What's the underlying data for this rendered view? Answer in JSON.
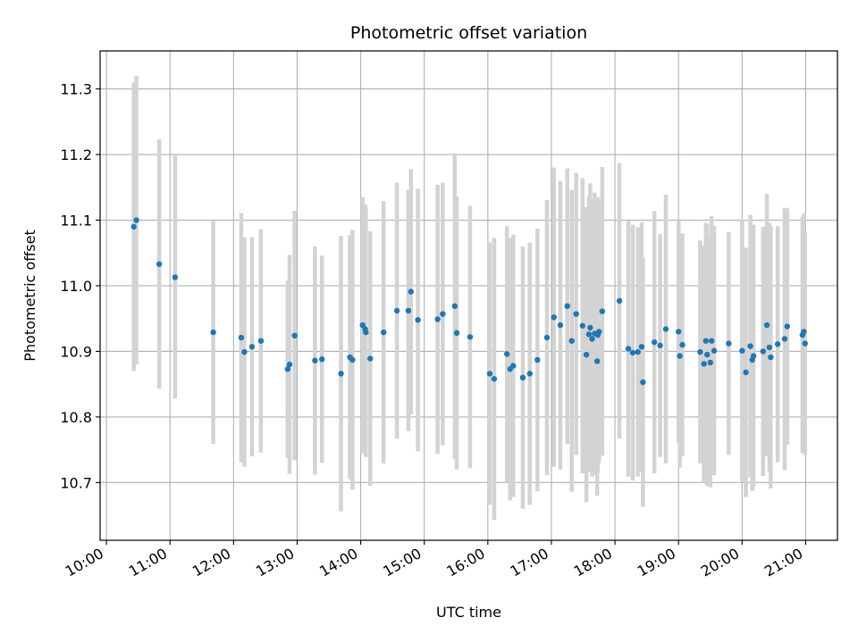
{
  "chart_data": {
    "type": "scatter",
    "title": "Photometric offset variation",
    "xlabel": "UTC time",
    "ylabel": "Photometric offset",
    "x_unit": "hour",
    "xlim": [
      9.9,
      21.5
    ],
    "ylim": [
      10.612,
      11.358
    ],
    "xticks": [
      10,
      11,
      12,
      13,
      14,
      15,
      16,
      17,
      18,
      19,
      20,
      21
    ],
    "xtick_labels": [
      "10:00",
      "11:00",
      "12:00",
      "13:00",
      "14:00",
      "15:00",
      "16:00",
      "17:00",
      "18:00",
      "19:00",
      "20:00",
      "21:00"
    ],
    "yticks": [
      10.7,
      10.8,
      10.9,
      11.0,
      11.1,
      11.2,
      11.3
    ],
    "ytick_labels": [
      "10.7",
      "10.8",
      "10.9",
      "11.0",
      "11.1",
      "11.2",
      "11.3"
    ],
    "grid": true,
    "colors": {
      "marker": "#1f77b4",
      "errorbar": "#d3d3d3",
      "grid": "#b0b0b0"
    },
    "points": [
      [
        10.43,
        11.09,
        0.22
      ],
      [
        10.47,
        11.1,
        0.22
      ],
      [
        10.83,
        11.033,
        0.19
      ],
      [
        11.08,
        11.013,
        0.185
      ],
      [
        11.68,
        10.929,
        0.17
      ],
      [
        12.12,
        10.921,
        0.19
      ],
      [
        12.17,
        10.899,
        0.175
      ],
      [
        12.29,
        10.907,
        0.167
      ],
      [
        12.43,
        10.916,
        0.17
      ],
      [
        12.85,
        10.873,
        0.135
      ],
      [
        12.88,
        10.88,
        0.167
      ],
      [
        12.96,
        10.924,
        0.19
      ],
      [
        13.28,
        10.886,
        0.174
      ],
      [
        13.39,
        10.888,
        0.158
      ],
      [
        13.69,
        10.866,
        0.21
      ],
      [
        13.83,
        10.891,
        0.186
      ],
      [
        13.87,
        10.887,
        0.198
      ],
      [
        14.03,
        10.94,
        0.195
      ],
      [
        14.07,
        10.934,
        0.19
      ],
      [
        14.08,
        10.929,
        0.19
      ],
      [
        14.15,
        10.889,
        0.194
      ],
      [
        14.36,
        10.929,
        0.2
      ],
      [
        14.57,
        10.962,
        0.195
      ],
      [
        14.75,
        10.962,
        0.184
      ],
      [
        14.79,
        10.991,
        0.187
      ],
      [
        14.9,
        10.948,
        0.2
      ],
      [
        15.21,
        10.949,
        0.205
      ],
      [
        15.29,
        10.957,
        0.2
      ],
      [
        15.48,
        10.969,
        0.233
      ],
      [
        15.51,
        10.928,
        0.208
      ],
      [
        15.72,
        10.922,
        0.2
      ],
      [
        16.03,
        10.866,
        0.2
      ],
      [
        16.1,
        10.858,
        0.215
      ],
      [
        16.3,
        10.896,
        0.195
      ],
      [
        16.35,
        10.873,
        0.2
      ],
      [
        16.4,
        10.878,
        0.2
      ],
      [
        16.55,
        10.86,
        0.2
      ],
      [
        16.66,
        10.866,
        0.2
      ],
      [
        16.78,
        10.887,
        0.2
      ],
      [
        16.93,
        10.921,
        0.21
      ],
      [
        17.04,
        10.952,
        0.228
      ],
      [
        17.14,
        10.94,
        0.22
      ],
      [
        17.25,
        10.969,
        0.21
      ],
      [
        17.32,
        10.916,
        0.23
      ],
      [
        17.39,
        10.957,
        0.215
      ],
      [
        17.49,
        10.939,
        0.225
      ],
      [
        17.55,
        10.895,
        0.225
      ],
      [
        17.59,
        10.926,
        0.21
      ],
      [
        17.61,
        10.936,
        0.22
      ],
      [
        17.64,
        10.919,
        0.21
      ],
      [
        17.68,
        10.927,
        0.215
      ],
      [
        17.72,
        10.885,
        0.205
      ],
      [
        17.73,
        10.925,
        0.21
      ],
      [
        17.75,
        10.93,
        0.2
      ],
      [
        17.8,
        10.961,
        0.22
      ],
      [
        18.07,
        10.977,
        0.21
      ],
      [
        18.21,
        10.904,
        0.195
      ],
      [
        18.28,
        10.898,
        0.195
      ],
      [
        18.36,
        10.899,
        0.19
      ],
      [
        18.42,
        10.907,
        0.19
      ],
      [
        18.44,
        10.853,
        0.19
      ],
      [
        18.62,
        10.914,
        0.2
      ],
      [
        18.71,
        10.909,
        0.17
      ],
      [
        18.8,
        10.934,
        0.205
      ],
      [
        19.0,
        10.93,
        0.17
      ],
      [
        19.02,
        10.893,
        0.17
      ],
      [
        19.06,
        10.91,
        0.17
      ],
      [
        19.34,
        10.899,
        0.17
      ],
      [
        19.4,
        10.881,
        0.18
      ],
      [
        19.43,
        10.916,
        0.18
      ],
      [
        19.45,
        10.895,
        0.2
      ],
      [
        19.5,
        10.883,
        0.19
      ],
      [
        19.52,
        10.916,
        0.19
      ],
      [
        19.56,
        10.901,
        0.19
      ],
      [
        19.79,
        10.912,
        0.17
      ],
      [
        20.0,
        10.901,
        0.2
      ],
      [
        20.06,
        10.868,
        0.19
      ],
      [
        20.13,
        10.908,
        0.2
      ],
      [
        20.16,
        10.887,
        0.2
      ],
      [
        20.18,
        10.893,
        0.2
      ],
      [
        20.33,
        10.9,
        0.19
      ],
      [
        20.39,
        10.94,
        0.2
      ],
      [
        20.43,
        10.906,
        0.19
      ],
      [
        20.45,
        10.891,
        0.2
      ],
      [
        20.56,
        10.911,
        0.18
      ],
      [
        20.67,
        10.919,
        0.2
      ],
      [
        20.71,
        10.938,
        0.18
      ],
      [
        20.95,
        10.925,
        0.18
      ],
      [
        20.97,
        10.93,
        0.18
      ],
      [
        20.99,
        10.912,
        0.17
      ]
    ]
  }
}
